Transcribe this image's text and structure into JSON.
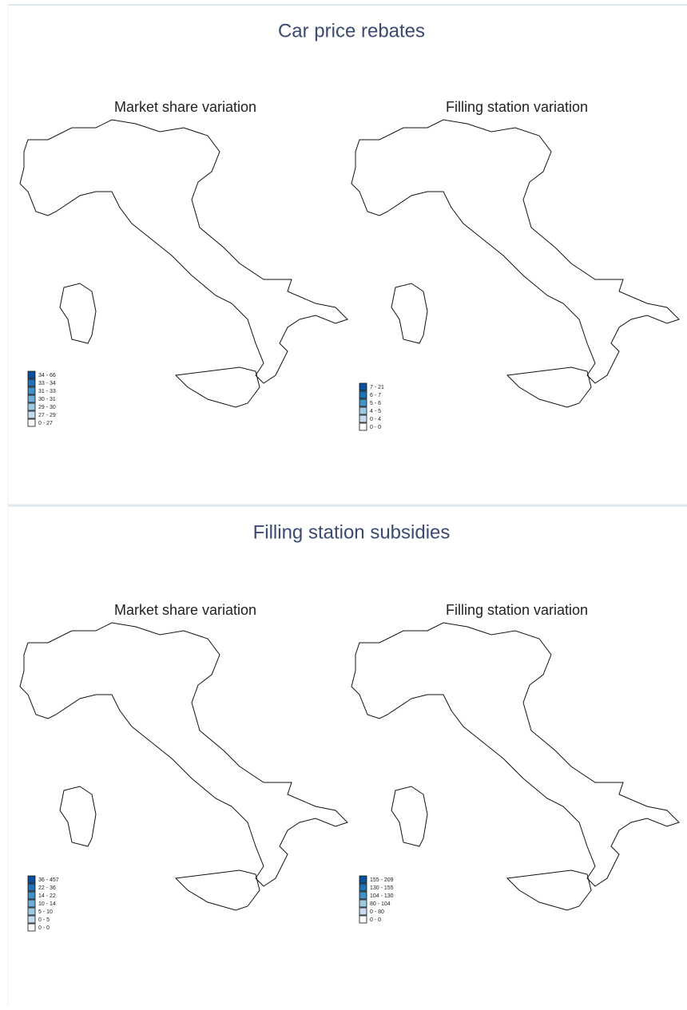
{
  "panels": [
    {
      "title": "Car price rebates",
      "maps": [
        {
          "subtitle": "Market share variation",
          "legend": [
            "34 - 66",
            "33 - 34",
            "31 - 33",
            "30 - 31",
            "29 - 30",
            "27 - 29",
            "0 - 27"
          ]
        },
        {
          "subtitle": "Filling station variation",
          "legend": [
            "7 - 21",
            "6 - 7",
            "5 - 6",
            "4 - 5",
            "0 - 4",
            "0 - 0"
          ]
        }
      ]
    },
    {
      "title": "Filling station subsidies",
      "maps": [
        {
          "subtitle": "Market share variation",
          "legend": [
            "36 - 457",
            "22 - 36",
            "14 - 22",
            "10 - 14",
            "5 - 10",
            "0 - 5",
            "0 - 0"
          ]
        },
        {
          "subtitle": "Filling station variation",
          "legend": [
            "155 - 209",
            "130 - 155",
            "104 - 130",
            "80 - 104",
            "0 - 80",
            "0 - 0"
          ]
        }
      ]
    }
  ],
  "palette": [
    "#ffffff",
    "#c6dbef",
    "#9ecae1",
    "#6baed6",
    "#4292c6",
    "#2171b5",
    "#08519c"
  ]
}
